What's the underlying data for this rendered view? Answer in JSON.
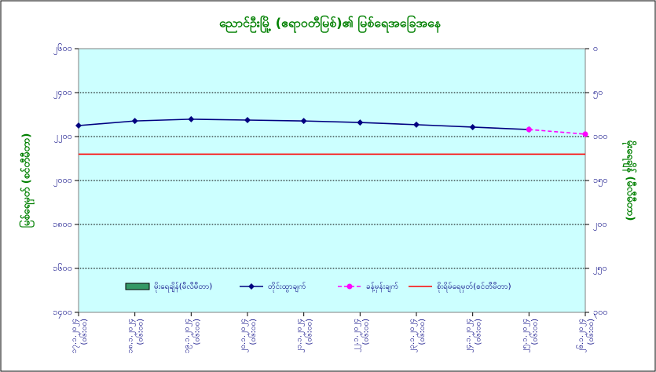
{
  "chart_data": {
    "type": "line",
    "title": "ညောင်ဦးမြို့ (ဧရာဝတီမြစ်)၏ မြစ်ရေအခြေအနေ",
    "y_label": "မြစ်ရေမှတ် (စင်တီမီတာ)",
    "y2_label": "မိုးရေချိန် (မီလီမီတာ)",
    "categories": [
      "၁၇.၁.၂၀၂၄ (၀၆:၀၀)",
      "၁၈.၁.၂၀၂၄ (၀၆:၀၀)",
      "၁၉.၁.၂၀၂၄ (၀၆:၀၀)",
      "၂၀.၁.၂၀၂၄ (၀၆:၀၀)",
      "၂၁.၁.၂၀၂၄ (၀၆:၀၀)",
      "၂၂.၁.၂၀၂၄ (၀၆:၀၀)",
      "၂၃.၁.၂၀၂၄ (၀၆:၀၀)",
      "၂၄.၁.၂၀၂၄ (၀၆:၀၀)",
      "၂၅.၁.၂၀၂၄ (၀၆:၀၀)",
      "၂၆.၁.၂၀၂၄ (၀၆:၀၀)"
    ],
    "series": [
      {
        "name": "မိုးရေချိန်(မီလီမီတာ)",
        "kind": "bar",
        "axis": "y2",
        "color": "#339966",
        "values": [
          0,
          0,
          0,
          0,
          0,
          0,
          0,
          0,
          0,
          0
        ]
      },
      {
        "name": "တိုင်းထွာချက်",
        "kind": "line",
        "color": "#000080",
        "values": [
          2250,
          2271,
          2279,
          2275,
          2271,
          2264,
          2254,
          2243,
          2232,
          null
        ]
      },
      {
        "name": "ခန့်မှန်းချက်",
        "kind": "dashed",
        "color": "#ff00ff",
        "values": [
          null,
          null,
          null,
          null,
          null,
          null,
          null,
          null,
          2232,
          2211
        ]
      },
      {
        "name": "စိုးရိမ်ရေမှတ်(စင်တီမီတာ)",
        "kind": "level",
        "color": "#ff0000",
        "values": [
          2120,
          2120,
          2120,
          2120,
          2120,
          2120,
          2120,
          2120,
          2120,
          2120
        ]
      }
    ],
    "ylim": [
      1400,
      2600
    ],
    "yticks": [
      {
        "value": 1400,
        "label": "၁၄၀၀"
      },
      {
        "value": 1600,
        "label": "၁၆၀၀"
      },
      {
        "value": 1800,
        "label": "၁၈၀၀"
      },
      {
        "value": 2000,
        "label": "၂၀၀၀"
      },
      {
        "value": 2200,
        "label": "၂၂၀၀"
      },
      {
        "value": 2400,
        "label": "၂၄၀၀"
      },
      {
        "value": 2600,
        "label": "၂၆၀၀"
      }
    ],
    "y2lim": [
      300,
      0
    ],
    "y2ticks": [
      {
        "value": 0,
        "label": "၀"
      },
      {
        "value": 50,
        "label": "၅၀"
      },
      {
        "value": 100,
        "label": "၁၀၀"
      },
      {
        "value": 150,
        "label": "၁၅၀"
      },
      {
        "value": 200,
        "label": "၂၀၀"
      },
      {
        "value": 250,
        "label": "၂၅၀"
      },
      {
        "value": 300,
        "label": "၃၀၀"
      }
    ],
    "grid": true,
    "legend": "bottom"
  }
}
